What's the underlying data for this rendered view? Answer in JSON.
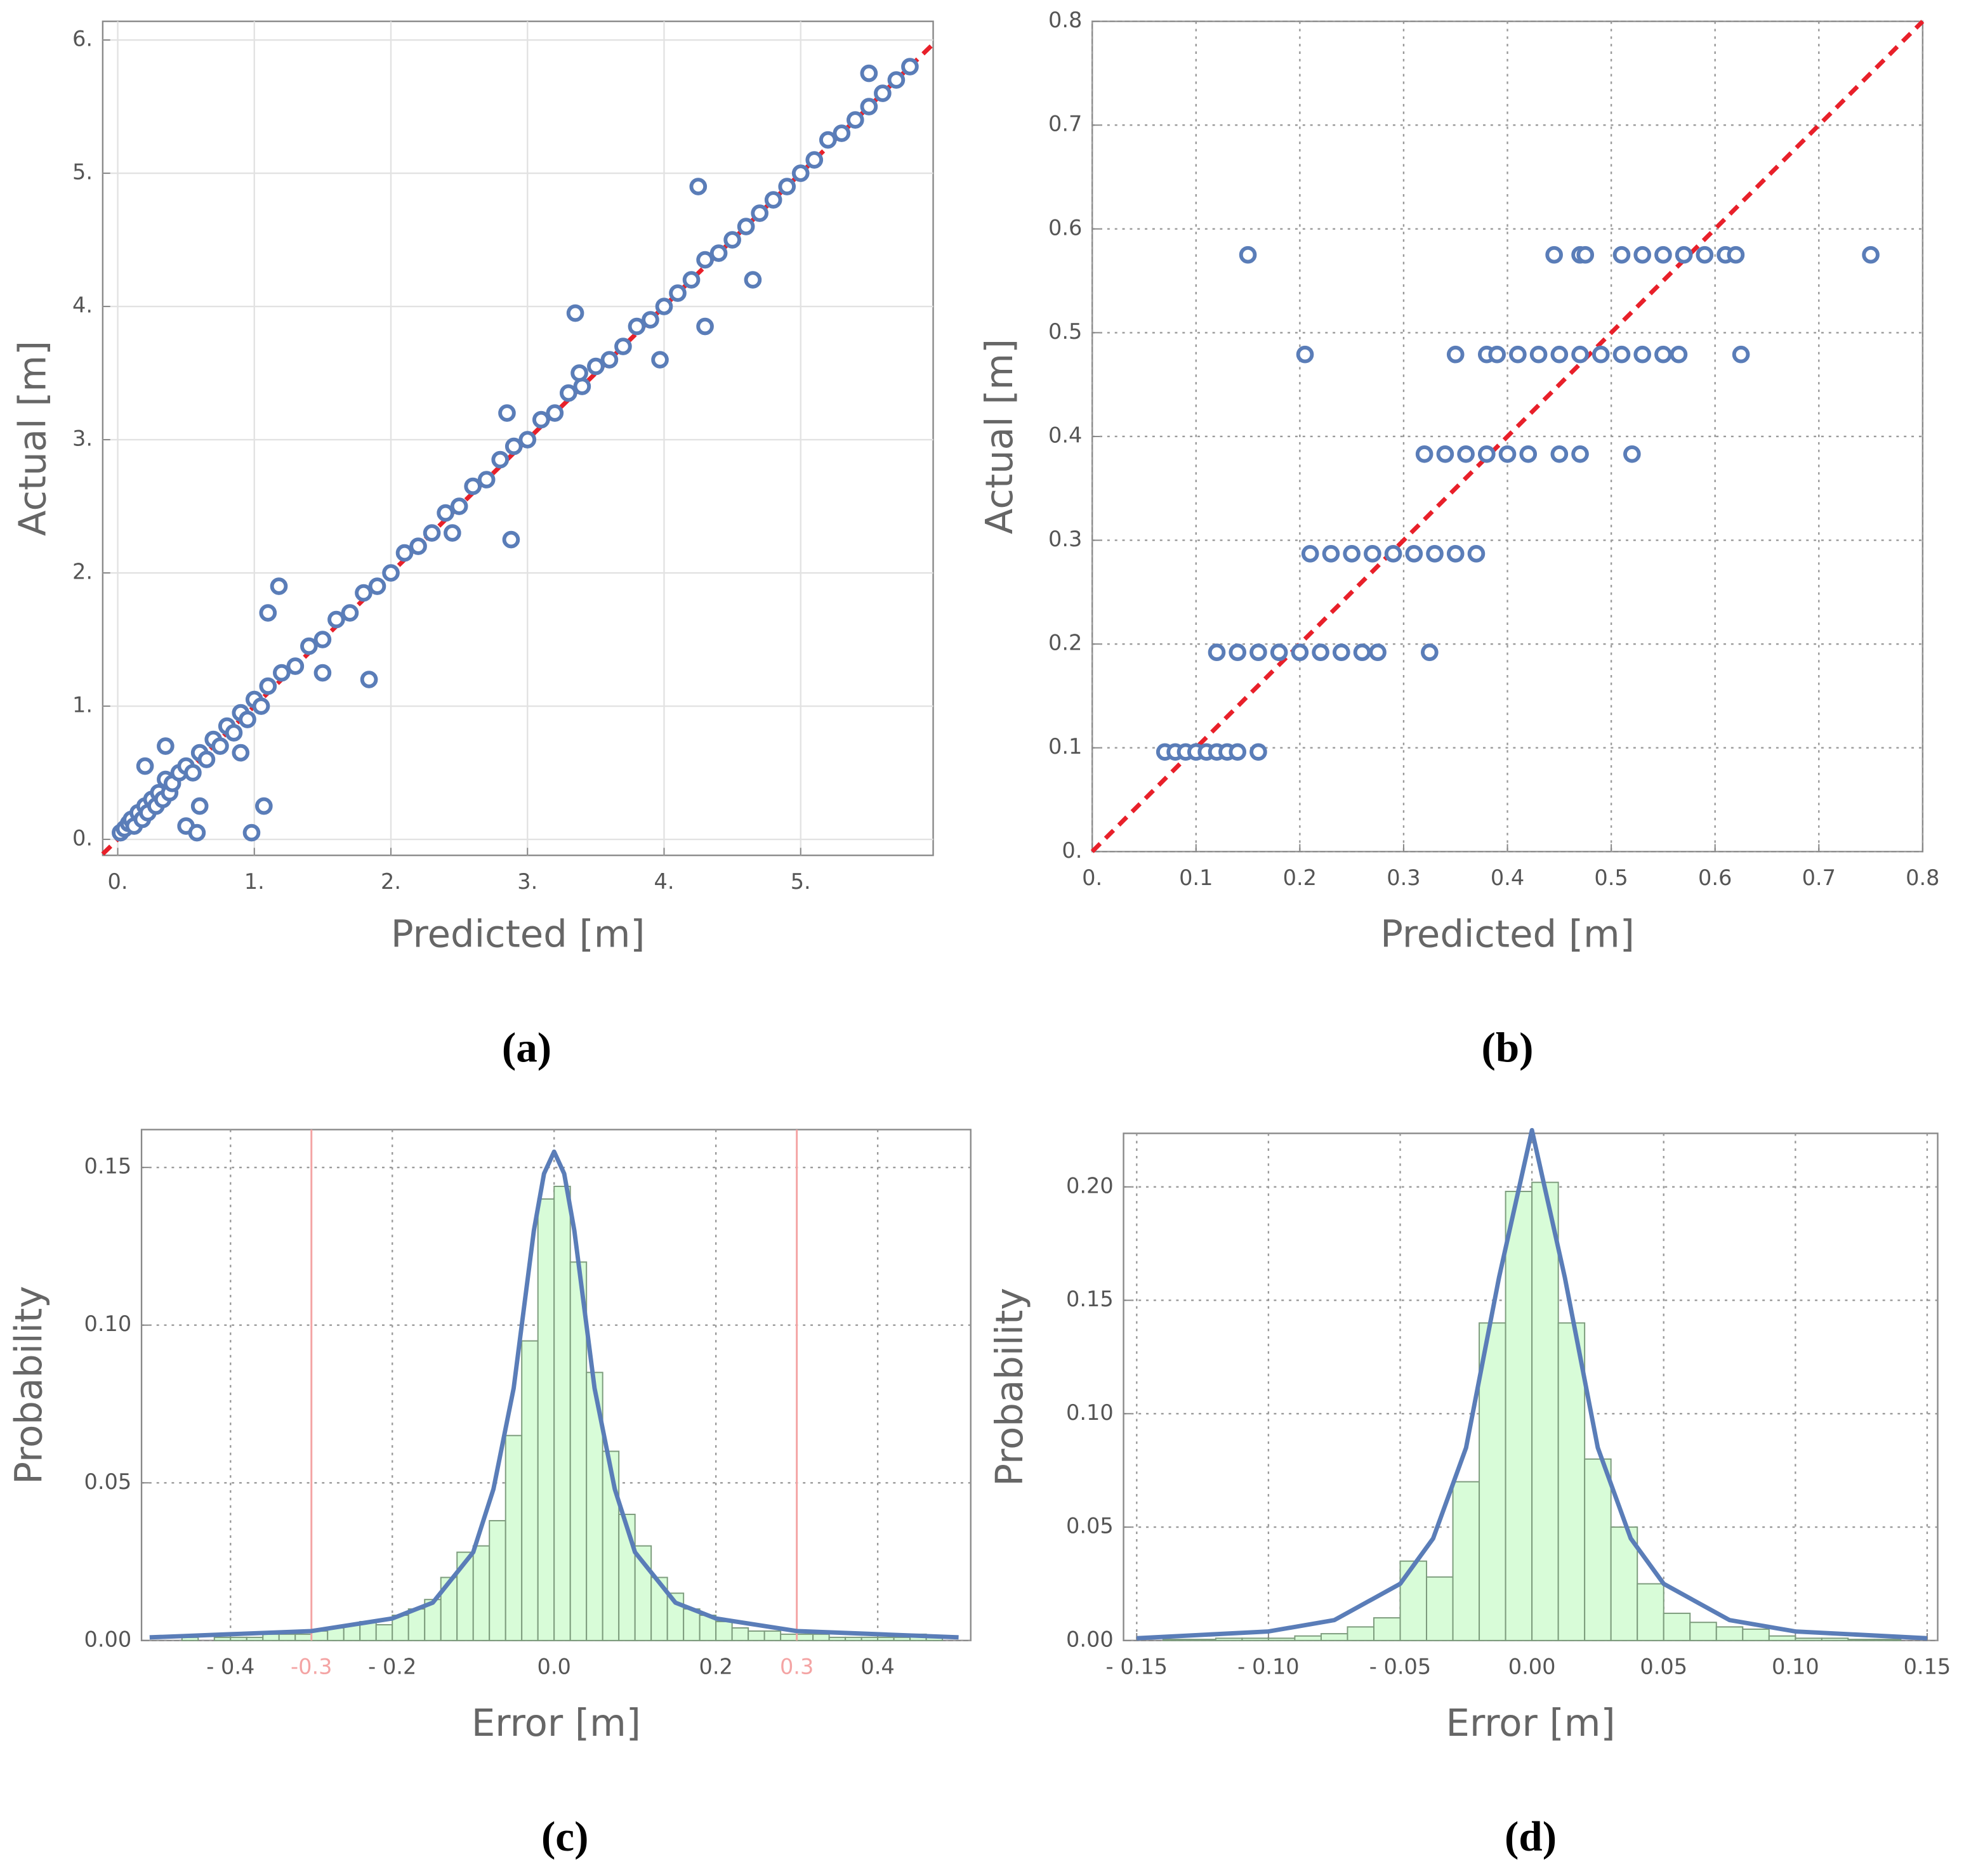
{
  "chart_data": [
    {
      "type": "scatter",
      "caption": "(a)",
      "x_label": "Predicted [m]",
      "y_label": "Actual [m]",
      "color": "#5a7db8",
      "diagonal_color": "#e8202a",
      "grid": "solid",
      "xlim": [
        -0.11,
        5.97
      ],
      "ylim": [
        -0.12,
        6.14
      ],
      "xticks": [
        {
          "value": 0,
          "label": "0."
        },
        {
          "value": 1,
          "label": "1."
        },
        {
          "value": 2,
          "label": "2."
        },
        {
          "value": 3,
          "label": "3."
        },
        {
          "value": 4,
          "label": "4."
        },
        {
          "value": 5,
          "label": "5."
        }
      ],
      "yticks": [
        {
          "value": 0,
          "label": "0."
        },
        {
          "value": 1,
          "label": "1."
        },
        {
          "value": 2,
          "label": "2."
        },
        {
          "value": 3,
          "label": "3."
        },
        {
          "value": 4,
          "label": "4."
        },
        {
          "value": 5,
          "label": "5."
        },
        {
          "value": 6,
          "label": "6."
        }
      ],
      "x": [
        0.02,
        0.05,
        0.08,
        0.1,
        0.12,
        0.15,
        0.18,
        0.2,
        0.22,
        0.25,
        0.28,
        0.3,
        0.33,
        0.35,
        0.38,
        0.4,
        0.45,
        0.5,
        0.55,
        0.6,
        0.65,
        0.7,
        0.75,
        0.8,
        0.85,
        0.9,
        0.95,
        1.0,
        1.05,
        1.1,
        1.2,
        1.3,
        1.4,
        1.5,
        1.6,
        1.7,
        1.8,
        1.9,
        2.0,
        2.1,
        2.2,
        2.3,
        2.4,
        2.5,
        2.6,
        2.7,
        2.8,
        2.9,
        3.0,
        3.1,
        3.2,
        3.3,
        3.4,
        3.5,
        3.6,
        3.7,
        3.8,
        3.9,
        4.0,
        4.1,
        4.2,
        4.3,
        4.4,
        4.5,
        4.6,
        4.7,
        4.8,
        4.9,
        5.0,
        5.1,
        5.2,
        5.3,
        5.4,
        5.5,
        5.6,
        5.7,
        5.8,
        0.98,
        1.07,
        1.84,
        2.88,
        1.18,
        1.1,
        3.35,
        4.25,
        3.97,
        4.3,
        5.5,
        4.65,
        0.5,
        0.58,
        0.35,
        0.6,
        0.2,
        0.9,
        1.5,
        2.45,
        2.85,
        3.38
      ],
      "y": [
        0.05,
        0.08,
        0.12,
        0.15,
        0.1,
        0.2,
        0.15,
        0.25,
        0.2,
        0.3,
        0.25,
        0.35,
        0.3,
        0.45,
        0.35,
        0.42,
        0.5,
        0.55,
        0.5,
        0.65,
        0.6,
        0.75,
        0.7,
        0.85,
        0.8,
        0.95,
        0.9,
        1.05,
        1.0,
        1.15,
        1.25,
        1.3,
        1.45,
        1.5,
        1.65,
        1.7,
        1.85,
        1.9,
        2.0,
        2.15,
        2.2,
        2.3,
        2.45,
        2.5,
        2.65,
        2.7,
        2.85,
        2.95,
        3.0,
        3.15,
        3.2,
        3.35,
        3.4,
        3.55,
        3.6,
        3.7,
        3.85,
        3.9,
        4.0,
        4.1,
        4.2,
        4.35,
        4.4,
        4.5,
        4.6,
        4.7,
        4.8,
        4.9,
        5.0,
        5.1,
        5.25,
        5.3,
        5.4,
        5.5,
        5.6,
        5.7,
        5.8,
        0.05,
        0.25,
        1.2,
        2.25,
        1.9,
        1.7,
        3.95,
        4.9,
        3.6,
        3.85,
        5.75,
        4.2,
        0.1,
        0.05,
        0.7,
        0.25,
        0.55,
        0.65,
        1.25,
        2.3,
        3.2,
        3.5
      ]
    },
    {
      "type": "scatter",
      "caption": "(b)",
      "x_label": "Predicted [m]",
      "y_label": "Actual [m]",
      "color": "#5a7db8",
      "diagonal_color": "#e8202a",
      "grid": "dotted",
      "xlim": [
        0,
        0.8
      ],
      "ylim": [
        0,
        0.8
      ],
      "xticks": [
        {
          "value": 0,
          "label": "0."
        },
        0.1,
        0.2,
        0.3,
        0.4,
        0.5,
        0.6,
        0.7,
        0.8
      ],
      "yticks": [
        {
          "value": 0,
          "label": "0."
        },
        0.1,
        0.2,
        0.3,
        0.4,
        0.5,
        0.6,
        0.7,
        0.8
      ],
      "x": [
        0.07,
        0.08,
        0.09,
        0.1,
        0.11,
        0.12,
        0.13,
        0.14,
        0.16,
        0.12,
        0.14,
        0.16,
        0.18,
        0.2,
        0.22,
        0.24,
        0.26,
        0.275,
        0.325,
        0.21,
        0.23,
        0.25,
        0.27,
        0.29,
        0.31,
        0.33,
        0.35,
        0.37,
        0.32,
        0.34,
        0.36,
        0.38,
        0.4,
        0.42,
        0.45,
        0.47,
        0.52,
        0.205,
        0.35,
        0.38,
        0.39,
        0.41,
        0.43,
        0.45,
        0.47,
        0.49,
        0.51,
        0.53,
        0.55,
        0.565,
        0.625,
        0.15,
        0.445,
        0.47,
        0.475,
        0.51,
        0.53,
        0.55,
        0.57,
        0.59,
        0.61,
        0.62,
        0.75
      ],
      "y": [
        0.096,
        0.096,
        0.096,
        0.096,
        0.096,
        0.096,
        0.096,
        0.096,
        0.096,
        0.192,
        0.192,
        0.192,
        0.192,
        0.192,
        0.192,
        0.192,
        0.192,
        0.192,
        0.192,
        0.287,
        0.287,
        0.287,
        0.287,
        0.287,
        0.287,
        0.287,
        0.287,
        0.287,
        0.383,
        0.383,
        0.383,
        0.383,
        0.383,
        0.383,
        0.383,
        0.383,
        0.383,
        0.479,
        0.479,
        0.479,
        0.479,
        0.479,
        0.479,
        0.479,
        0.479,
        0.479,
        0.479,
        0.479,
        0.479,
        0.479,
        0.479,
        0.575,
        0.575,
        0.575,
        0.575,
        0.575,
        0.575,
        0.575,
        0.575,
        0.575,
        0.575,
        0.575,
        0.575
      ]
    },
    {
      "type": "histogram",
      "caption": "(c)",
      "x_label": "Error [m]",
      "y_label": "Probability",
      "color": "#d8fcd8",
      "edge_color": "#7d9c7d",
      "grid": "dotted",
      "xlim": [
        -0.51,
        0.515
      ],
      "ylim": [
        0,
        0.162
      ],
      "xticks": [
        {
          "value": -0.4,
          "label": "- 0.4"
        },
        {
          "value": -0.2,
          "label": "- 0.2"
        },
        {
          "value": 0,
          "label": "0.0"
        },
        0.2,
        0.4
      ],
      "yticks": [
        {
          "value": 0,
          "label": "0.00"
        },
        0.05,
        {
          "value": 0.1,
          "label": "0.10"
        },
        0.15
      ],
      "markers": [
        -0.3,
        0.3
      ],
      "marker_color": "#f4a4a4",
      "bins": [
        -0.5,
        -0.48,
        -0.46,
        -0.44,
        -0.42,
        -0.4,
        -0.38,
        -0.36,
        -0.34,
        -0.32,
        -0.3,
        -0.28,
        -0.26,
        -0.24,
        -0.22,
        -0.2,
        -0.18,
        -0.16,
        -0.14,
        -0.12,
        -0.1,
        -0.08,
        -0.06,
        -0.04,
        -0.02,
        0,
        0.02,
        0.04,
        0.06,
        0.08,
        0.1,
        0.12,
        0.14,
        0.16,
        0.18,
        0.2,
        0.22,
        0.24,
        0.26,
        0.28,
        0.3,
        0.32,
        0.34,
        0.36,
        0.38,
        0.4,
        0.42,
        0.44,
        0.46,
        0.48,
        0.5
      ],
      "values": [
        0,
        0,
        0.001,
        0,
        0.001,
        0.001,
        0.001,
        0.002,
        0.002,
        0.002,
        0.003,
        0.004,
        0.005,
        0.006,
        0.005,
        0.008,
        0.01,
        0.013,
        0.02,
        0.028,
        0.03,
        0.038,
        0.065,
        0.095,
        0.14,
        0.144,
        0.12,
        0.085,
        0.06,
        0.04,
        0.03,
        0.02,
        0.015,
        0.01,
        0.008,
        0.006,
        0.004,
        0.003,
        0.003,
        0.002,
        0.002,
        0.002,
        0.001,
        0.001,
        0.001,
        0.001,
        0.001,
        0.002,
        0.001,
        0
      ],
      "curve": {
        "color": "#5a7db8",
        "x": [
          -0.5,
          -0.4,
          -0.3,
          -0.2,
          -0.15,
          -0.1,
          -0.075,
          -0.05,
          -0.0375,
          -0.025,
          -0.0125,
          0,
          0.0125,
          0.025,
          0.0375,
          0.05,
          0.075,
          0.1,
          0.15,
          0.2,
          0.3,
          0.4,
          0.5
        ],
        "y": [
          0.001,
          0.002,
          0.003,
          0.007,
          0.012,
          0.028,
          0.048,
          0.08,
          0.105,
          0.13,
          0.148,
          0.155,
          0.148,
          0.13,
          0.105,
          0.08,
          0.048,
          0.028,
          0.012,
          0.007,
          0.003,
          0.002,
          0.001
        ]
      }
    },
    {
      "type": "histogram",
      "caption": "(d)",
      "x_label": "Error [m]",
      "y_label": "Probability",
      "color": "#d8fcd8",
      "edge_color": "#7d9c7d",
      "grid": "dotted",
      "xlim": [
        -0.155,
        0.154
      ],
      "ylim": [
        0,
        0.2236
      ],
      "xticks": [
        {
          "value": -0.15,
          "label": "- 0.15"
        },
        {
          "value": -0.1,
          "label": "- 0.10"
        },
        {
          "value": -0.05,
          "label": "- 0.05"
        },
        {
          "value": 0,
          "label": "0.00"
        },
        0.05,
        {
          "value": 0.1,
          "label": "0.10"
        },
        0.15
      ],
      "yticks": [
        {
          "value": 0,
          "label": "0.00"
        },
        0.05,
        {
          "value": 0.1,
          "label": "0.10"
        },
        0.15,
        {
          "value": 0.2,
          "label": "0.20"
        }
      ],
      "bins": [
        -0.15,
        -0.14,
        -0.13,
        -0.12,
        -0.11,
        -0.1,
        -0.09,
        -0.08,
        -0.07,
        -0.06,
        -0.05,
        -0.04,
        -0.03,
        -0.02,
        -0.01,
        0,
        0.01,
        0.02,
        0.03,
        0.04,
        0.05,
        0.06,
        0.07,
        0.08,
        0.09,
        0.1,
        0.11,
        0.12,
        0.13,
        0.14,
        0.15
      ],
      "values": [
        0,
        0.0005,
        0.0005,
        0.001,
        0.001,
        0.001,
        0.002,
        0.003,
        0.006,
        0.01,
        0.035,
        0.028,
        0.07,
        0.14,
        0.198,
        0.202,
        0.14,
        0.08,
        0.05,
        0.025,
        0.012,
        0.008,
        0.006,
        0.005,
        0.002,
        0.001,
        0.001,
        0.0005,
        0.0005,
        0
      ],
      "curve": {
        "color": "#5a7db8",
        "x": [
          -0.15,
          -0.1,
          -0.075,
          -0.05,
          -0.0375,
          -0.025,
          -0.0125,
          0,
          0.0125,
          0.025,
          0.0375,
          0.05,
          0.075,
          0.1,
          0.15
        ],
        "y": [
          0.001,
          0.004,
          0.009,
          0.025,
          0.045,
          0.085,
          0.16,
          0.225,
          0.16,
          0.085,
          0.045,
          0.025,
          0.009,
          0.004,
          0.001
        ]
      }
    }
  ]
}
